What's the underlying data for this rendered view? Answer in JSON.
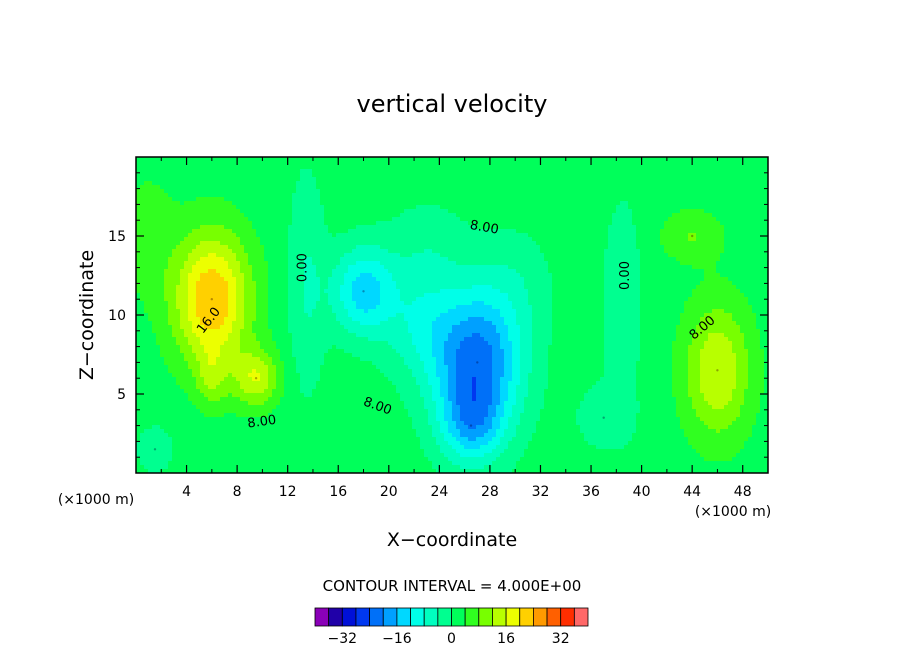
{
  "chart_data": {
    "type": "heatmap",
    "title": "vertical velocity",
    "xlabel": "X−coordinate",
    "ylabel": "Z−coordinate",
    "x_unit": "(×1000 m)",
    "xlim": [
      0,
      50
    ],
    "ylim": [
      0,
      20
    ],
    "x_ticks": [
      "4",
      "8",
      "12",
      "16",
      "20",
      "24",
      "28",
      "32",
      "36",
      "40",
      "44",
      "48"
    ],
    "y_ticks": [
      "5",
      "10",
      "15"
    ],
    "contour_interval_text": "CONTOUR INTERVAL = 4.000E+00",
    "contour_labels": [
      "16.0",
      "8.00",
      "0.00",
      "8.00",
      "8.00",
      "0.00",
      "8.00"
    ],
    "features": [
      {
        "x": 6,
        "z": 11,
        "value": 20
      },
      {
        "x": 9.5,
        "z": 6,
        "value": 14
      },
      {
        "x": 46,
        "z": 6.5,
        "value": 14
      },
      {
        "x": 44,
        "z": 15,
        "value": 6
      },
      {
        "x": 27,
        "z": 7,
        "value": -24
      },
      {
        "x": 18,
        "z": 11.5,
        "value": -16
      },
      {
        "x": 26.5,
        "z": 3,
        "value": -14
      },
      {
        "x": 37,
        "z": 3.5,
        "value": -4
      },
      {
        "x": 1.5,
        "z": 1.5,
        "value": -6
      }
    ],
    "colorbar": {
      "levels": [
        -40,
        -36,
        -32,
        -28,
        -24,
        -20,
        -16,
        -12,
        -8,
        -4,
        0,
        4,
        8,
        12,
        16,
        20,
        24,
        28,
        32,
        36,
        40
      ],
      "colors": [
        "#8a00b8",
        "#2000a8",
        "#0010d8",
        "#0038f0",
        "#0070f8",
        "#00a0ff",
        "#00d8ff",
        "#00ffe8",
        "#00ffc0",
        "#00ff90",
        "#00ff5a",
        "#30ff20",
        "#78ff00",
        "#b8ff00",
        "#ecff00",
        "#ffd000",
        "#ff9a00",
        "#ff6000",
        "#ff2e00",
        "#ff6868"
      ],
      "tick_labels": [
        "−32",
        "−16",
        "0",
        "16",
        "32"
      ]
    }
  }
}
